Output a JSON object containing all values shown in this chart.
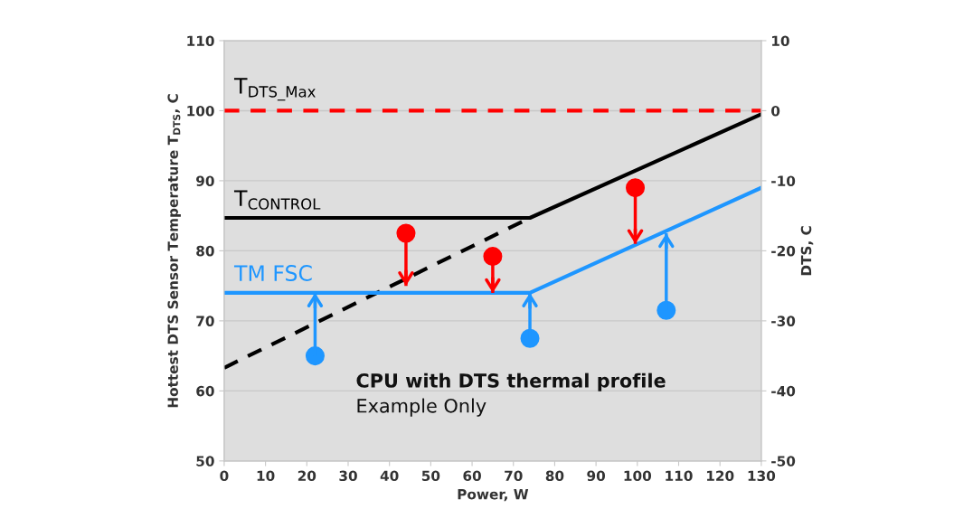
{
  "chart_data": {
    "type": "line",
    "xlabel": "Power, W",
    "ylabel": "Hottest DTS Sensor Temperature T$_{DTS}$, C",
    "y2label": "DTS, C",
    "xlim": [
      0,
      130
    ],
    "xticks": [
      0,
      10,
      20,
      30,
      40,
      50,
      60,
      70,
      80,
      90,
      100,
      110,
      120,
      130
    ],
    "ylim": [
      50,
      110
    ],
    "yticks": [
      50,
      60,
      70,
      80,
      90,
      100,
      110
    ],
    "y2lim": [
      -50,
      10
    ],
    "y2ticks": [
      -50,
      -40,
      -30,
      -20,
      -10,
      0,
      10
    ],
    "grid": "y",
    "legend": false,
    "series": [
      {
        "name": "T$_{CONTROL}$",
        "color": "#000000",
        "line_style": "solid",
        "x": [
          0,
          74,
          130
        ],
        "values": [
          84.7,
          84.7,
          99.5
        ]
      },
      {
        "color": "#000000",
        "line_style": "dashed",
        "x": [
          0,
          74
        ],
        "values": [
          63.3,
          84.7
        ]
      },
      {
        "name": "TM FSC",
        "color": "#1e96ff",
        "line_style": "solid",
        "x": [
          0,
          74,
          130
        ],
        "values": [
          74,
          74,
          89
        ]
      },
      {
        "type": "scatter",
        "color": "#ff0000",
        "marker": "circle",
        "x": [
          44,
          65,
          99.5
        ],
        "values": [
          82.5,
          79.2,
          89
        ],
        "errors": [
          [
            75,
            82.5
          ],
          [
            74,
            79.2
          ],
          [
            81,
            89
          ]
        ]
      },
      {
        "type": "scatter",
        "color": "#1e96ff",
        "marker": "circle",
        "x": [
          22,
          74,
          107
        ],
        "values": [
          65,
          67.5,
          71.5
        ],
        "errors": [
          [
            65,
            74
          ],
          [
            67.5,
            74
          ],
          [
            71.5,
            82.5
          ]
        ]
      }
    ],
    "ref_lines": [
      {
        "axis": "y",
        "value": 100,
        "label": "T$_{DTS_Max}$",
        "color": "#ff0000",
        "line_style": "dashed"
      }
    ],
    "annotations": [
      "CPU with DTS thermal profile",
      "Example Only"
    ]
  }
}
